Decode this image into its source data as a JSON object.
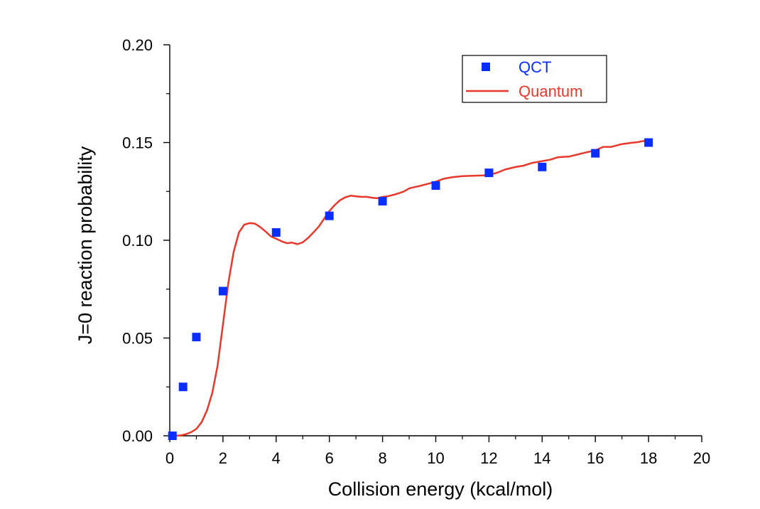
{
  "chart_data": {
    "type": "scatter",
    "title": "",
    "xlabel": "Collision energy (kcal/mol)",
    "ylabel": "J=0 reaction probability",
    "xlim": [
      0,
      20
    ],
    "ylim": [
      0,
      0.2
    ],
    "xticks": [
      "0",
      "2",
      "4",
      "6",
      "8",
      "10",
      "12",
      "14",
      "16",
      "18",
      "20"
    ],
    "yticks": [
      "0.00",
      "0.05",
      "0.10",
      "0.15",
      "0.20"
    ],
    "grid": false,
    "legend_position": "top-right",
    "series": [
      {
        "name": "QCT",
        "kind": "markers",
        "color": "#0a2eff",
        "x": [
          0.1,
          0.5,
          1.0,
          2.0,
          4.0,
          6.0,
          8.0,
          10.0,
          12.0,
          14.0,
          16.0,
          18.0
        ],
        "y": [
          0.0,
          0.025,
          0.0505,
          0.074,
          0.104,
          0.1125,
          0.12,
          0.128,
          0.1345,
          0.1375,
          0.1445,
          0.15
        ]
      },
      {
        "name": "Quantum",
        "kind": "line",
        "color": "#e8382c",
        "x": [
          0.2,
          0.4,
          0.6,
          0.8,
          1.0,
          1.2,
          1.4,
          1.6,
          1.8,
          2.0,
          2.2,
          2.4,
          2.6,
          2.8,
          3.0,
          3.2,
          3.4,
          3.6,
          3.8,
          4.0,
          4.2,
          4.4,
          4.6,
          4.8,
          5.0,
          5.2,
          5.4,
          5.6,
          5.8,
          6.0,
          6.2,
          6.4,
          6.6,
          6.8,
          7.0,
          7.2,
          7.4,
          7.6,
          7.8,
          8.0,
          8.2,
          8.4,
          8.6,
          8.8,
          9.0,
          9.2,
          9.4,
          9.6,
          9.8,
          10.0,
          10.3,
          10.6,
          11.0,
          11.4,
          11.8,
          12.0,
          12.3,
          12.6,
          13.0,
          13.3,
          13.6,
          14.0,
          14.3,
          14.6,
          15.0,
          15.3,
          15.6,
          16.0,
          16.3,
          16.6,
          17.0,
          17.3,
          17.6,
          17.8,
          18.0
        ],
        "y": [
          0.0,
          0.0002,
          0.0008,
          0.0018,
          0.0035,
          0.007,
          0.013,
          0.022,
          0.036,
          0.057,
          0.078,
          0.094,
          0.104,
          0.108,
          0.1088,
          0.1085,
          0.1068,
          0.1045,
          0.102,
          0.1008,
          0.0995,
          0.0985,
          0.0988,
          0.098,
          0.099,
          0.1012,
          0.104,
          0.107,
          0.111,
          0.115,
          0.118,
          0.1205,
          0.122,
          0.1228,
          0.1225,
          0.1222,
          0.1222,
          0.1218,
          0.1215,
          0.1222,
          0.1225,
          0.1232,
          0.124,
          0.125,
          0.1265,
          0.1272,
          0.1278,
          0.1285,
          0.1292,
          0.13,
          0.1315,
          0.1322,
          0.1328,
          0.133,
          0.1332,
          0.1335,
          0.1345,
          0.1362,
          0.1375,
          0.1382,
          0.1395,
          0.1405,
          0.1412,
          0.1425,
          0.1428,
          0.1438,
          0.1448,
          0.146,
          0.1478,
          0.1478,
          0.1492,
          0.1498,
          0.1502,
          0.1508,
          0.1502
        ]
      }
    ]
  }
}
